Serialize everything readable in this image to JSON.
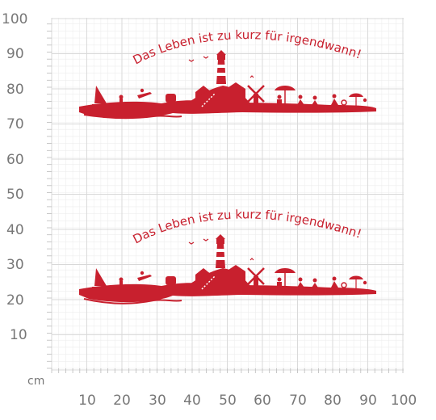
{
  "unit_label": "cm",
  "y_ticks": [
    "100",
    "90",
    "80",
    "70",
    "60",
    "50",
    "40",
    "30",
    "20",
    "10"
  ],
  "x_ticks": [
    "10",
    "20",
    "30",
    "40",
    "50",
    "60",
    "70",
    "80",
    "90",
    "100"
  ],
  "designs": [
    {
      "slogan": "Das Leben ist zu kurz für irgendwann!"
    },
    {
      "slogan": "Das Leben ist zu kurz für irgendwann!"
    }
  ],
  "colors": {
    "accent": "#c8202e",
    "grid_minor": "#ededed",
    "grid_major": "#d8d8d8",
    "axis_text": "#777777"
  }
}
